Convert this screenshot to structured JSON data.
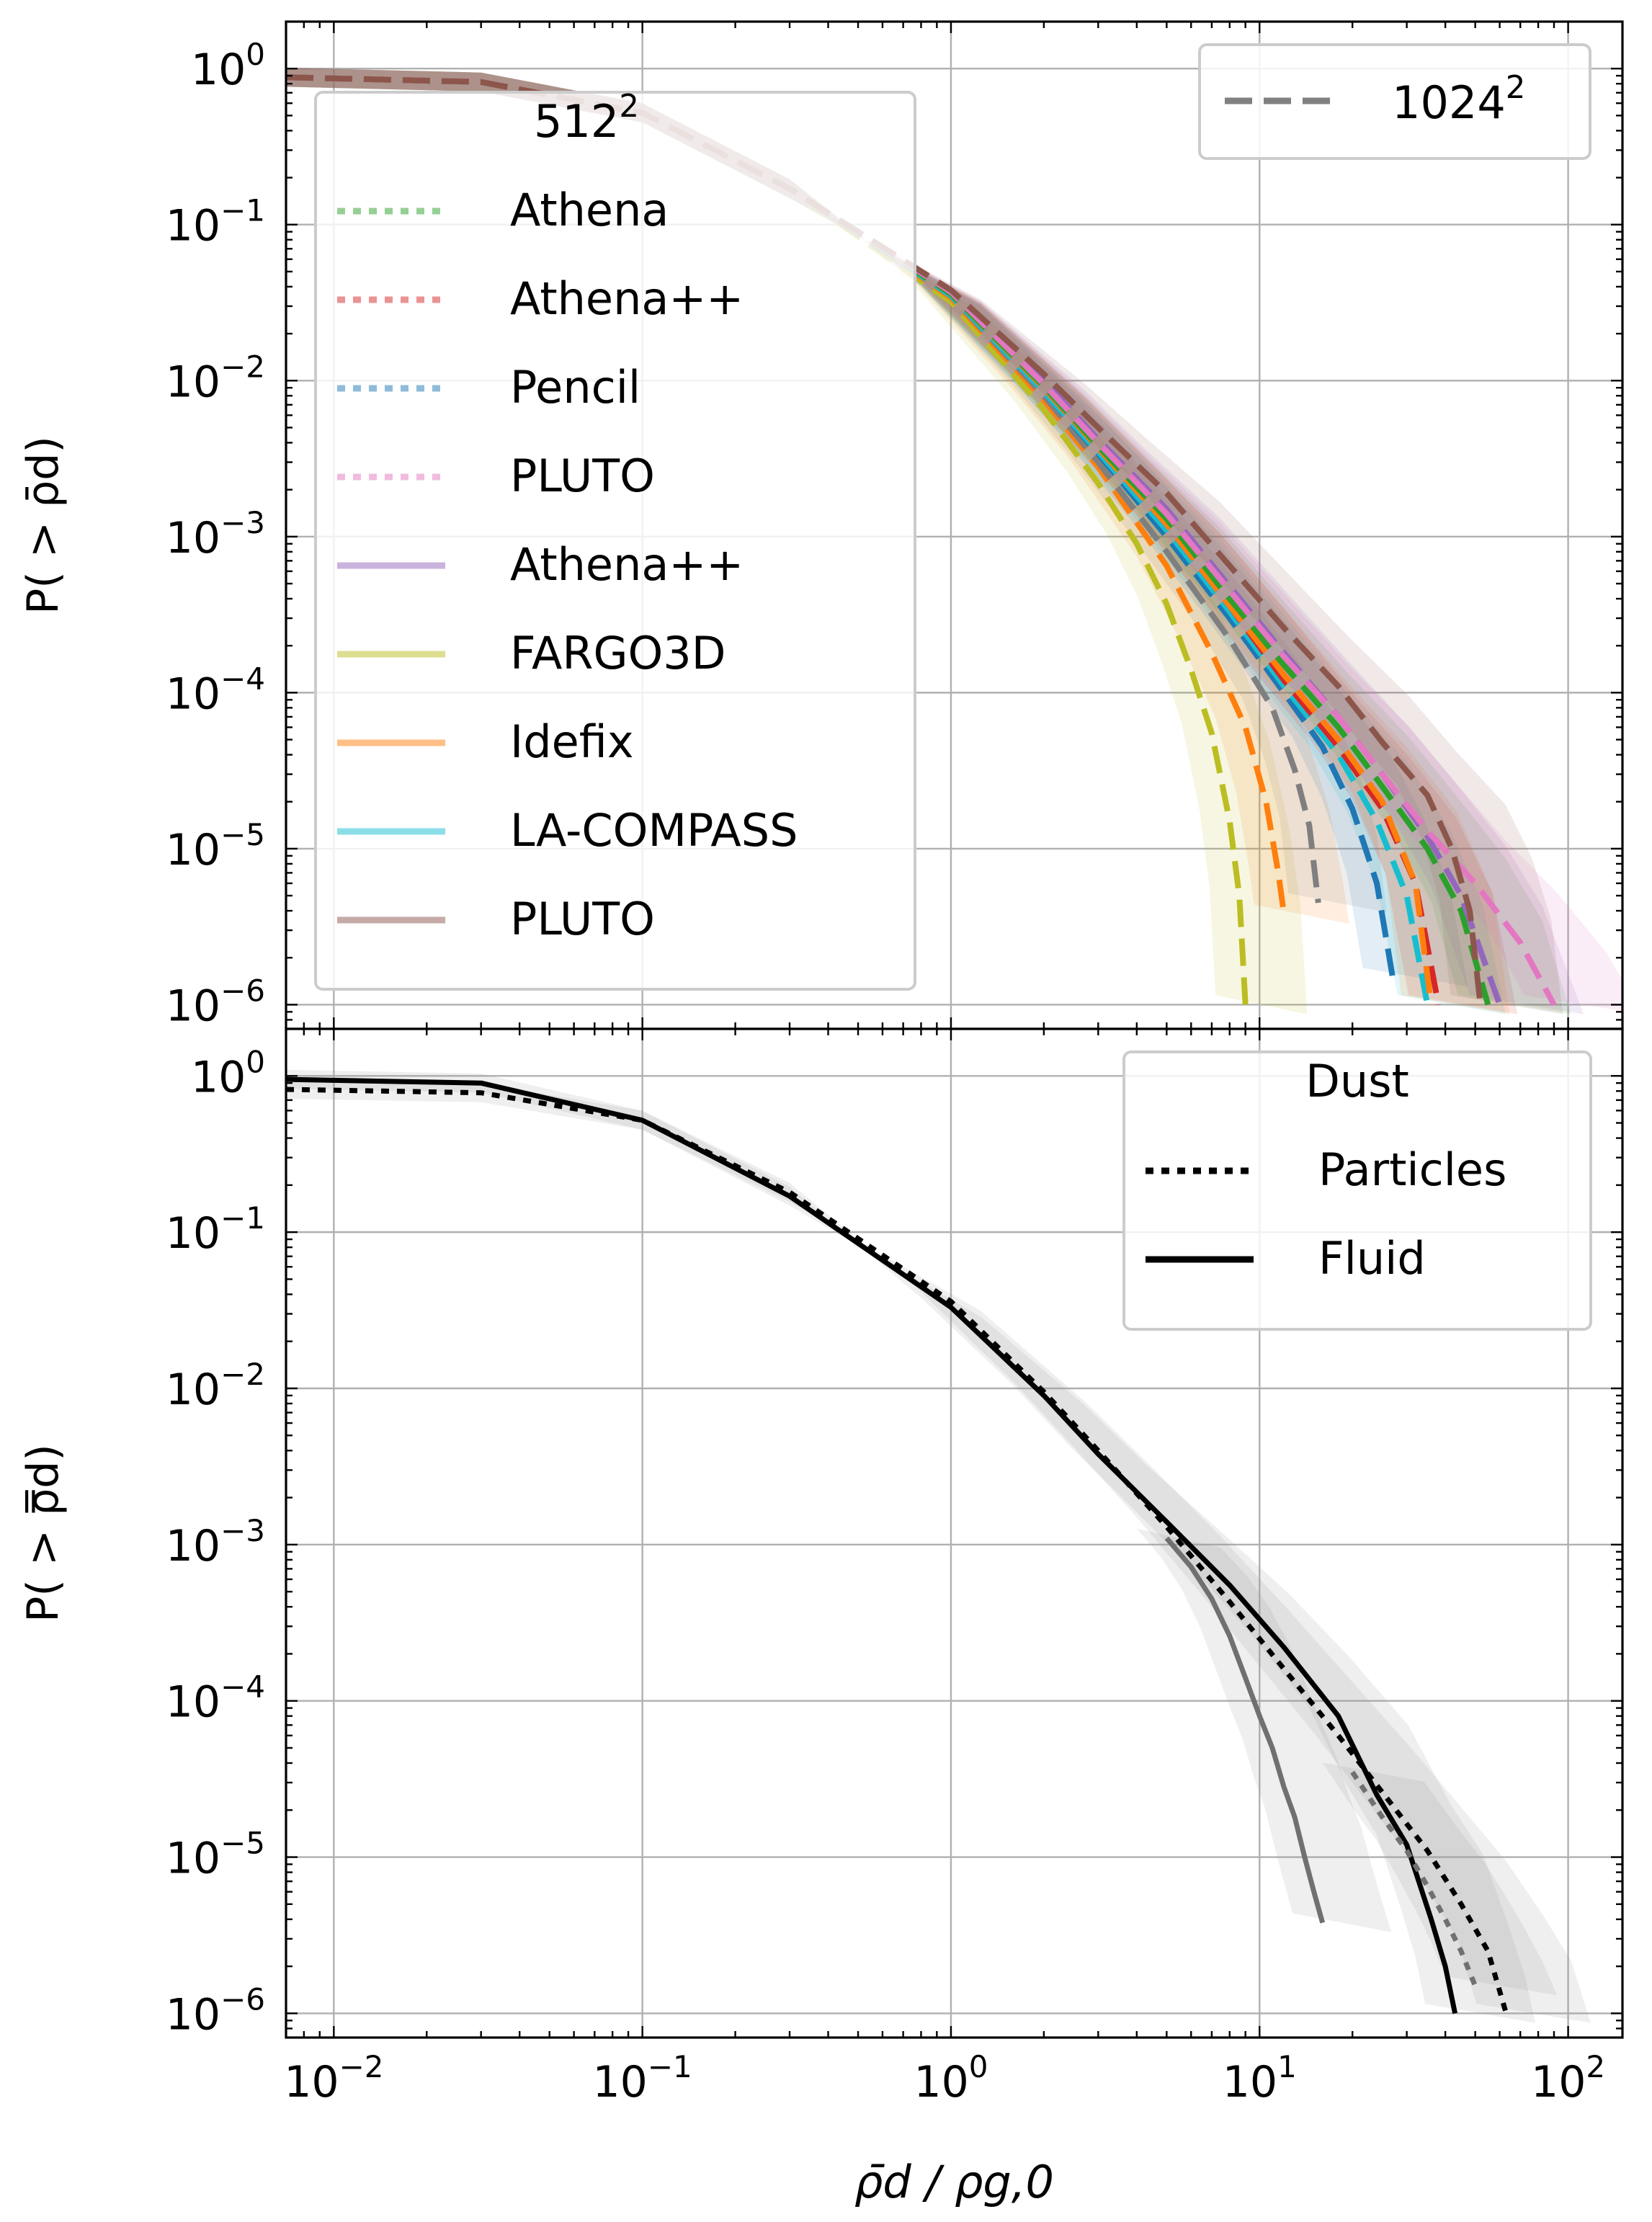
{
  "chart_data": [
    {
      "type": "line",
      "panel": "top",
      "xscale": "log",
      "yscale": "log",
      "xlim": [
        0.007,
        150
      ],
      "ylim": [
        7e-07,
        2
      ],
      "grid": true,
      "ylabel": "P( > ρ̄d)",
      "x_tick_labels": [
        "10^-2",
        "10^-1",
        "10^0",
        "10^1",
        "10^2"
      ],
      "y_tick_labels": [
        "10^0",
        "10^-1",
        "10^-2",
        "10^-3",
        "10^-4",
        "10^-5",
        "10^-6"
      ],
      "legend": {
        "placement": "upper-left",
        "title": "512^2",
        "entries": [
          {
            "label": "Athena",
            "style": "dotted",
            "color": "#2ca02c"
          },
          {
            "label": "Athena++",
            "style": "dotted",
            "color": "#d62728"
          },
          {
            "label": "Pencil",
            "style": "dotted",
            "color": "#1f77b4"
          },
          {
            "label": "PLUTO",
            "style": "dotted",
            "color": "#e377c2"
          },
          {
            "label": "Athena++",
            "style": "solid",
            "color": "#9467bd"
          },
          {
            "label": "FARGO3D",
            "style": "solid",
            "color": "#bcbd22"
          },
          {
            "label": "Idefix",
            "style": "solid",
            "color": "#ff7f0e"
          },
          {
            "label": "LA-COMPASS",
            "style": "solid",
            "color": "#17becf"
          },
          {
            "label": "PLUTO",
            "style": "solid",
            "color": "#8c564b"
          }
        ]
      },
      "legend2": {
        "placement": "upper-right",
        "entries": [
          {
            "label": "1024^2",
            "style": "dashed",
            "color": "#808080"
          }
        ]
      },
      "series": [
        {
          "color": "#bcbd22",
          "x": [
            0.007,
            0.03,
            0.1,
            0.3,
            1,
            2,
            3,
            4,
            5,
            6,
            7,
            8,
            8.6,
            9.0
          ],
          "y": [
            0.88,
            0.82,
            0.52,
            0.17,
            0.032,
            0.0065,
            0.0022,
            0.0009,
            0.00037,
            0.00014,
            5.5e-05,
            1.5e-05,
            5e-06,
            1e-06
          ]
        },
        {
          "color": "#ff7f0e",
          "x": [
            0.007,
            0.03,
            0.1,
            0.3,
            1,
            2,
            3,
            5,
            7,
            9,
            10.5,
            11.5,
            12
          ],
          "y": [
            0.88,
            0.82,
            0.52,
            0.17,
            0.034,
            0.0075,
            0.0028,
            0.00065,
            0.00018,
            6e-05,
            2e-05,
            7e-06,
            3.8e-06
          ]
        },
        {
          "color": "#7f7f7f",
          "x": [
            0.007,
            0.03,
            0.1,
            0.3,
            1,
            2,
            3,
            5,
            8,
            11,
            13,
            14.5,
            15.5
          ],
          "y": [
            0.88,
            0.82,
            0.52,
            0.17,
            0.035,
            0.008,
            0.003,
            0.0008,
            0.00022,
            8e-05,
            3.2e-05,
            1.4e-05,
            4.5e-06
          ]
        },
        {
          "color": "#1f77b4",
          "x": [
            0.007,
            0.03,
            0.1,
            0.3,
            1,
            2,
            3,
            5,
            8,
            12,
            16,
            20,
            24,
            27
          ],
          "y": [
            0.88,
            0.82,
            0.52,
            0.17,
            0.035,
            0.0085,
            0.0034,
            0.001,
            0.0003,
            0.0001,
            4.5e-05,
            1.8e-05,
            6e-06,
            1.5e-06
          ]
        },
        {
          "color": "#17becf",
          "x": [
            0.007,
            0.03,
            0.1,
            0.3,
            1,
            2,
            3,
            5,
            8,
            12,
            18,
            24,
            30,
            35
          ],
          "y": [
            0.88,
            0.82,
            0.52,
            0.17,
            0.035,
            0.0085,
            0.0035,
            0.0011,
            0.00033,
            0.00011,
            4e-05,
            1.5e-05,
            5e-06,
            1e-06
          ]
        },
        {
          "color": "#d62728",
          "x": [
            0.007,
            0.03,
            0.1,
            0.3,
            1,
            2,
            3,
            5,
            8,
            12,
            18,
            25,
            32,
            38
          ],
          "y": [
            0.88,
            0.82,
            0.52,
            0.17,
            0.036,
            0.009,
            0.0037,
            0.0012,
            0.00036,
            0.00012,
            4.5e-05,
            1.8e-05,
            6e-06,
            1e-06
          ]
        },
        {
          "color": "#ff7f0e",
          "x": [
            0.007,
            0.03,
            0.1,
            0.3,
            1,
            2,
            3,
            5,
            8,
            12,
            18,
            25,
            32,
            36
          ],
          "y": [
            0.88,
            0.82,
            0.52,
            0.17,
            0.036,
            0.009,
            0.0037,
            0.0012,
            0.00036,
            0.00013,
            5e-05,
            2e-05,
            6e-06,
            1e-06
          ]
        },
        {
          "color": "#2ca02c",
          "x": [
            0.007,
            0.03,
            0.1,
            0.3,
            1,
            2,
            3,
            5,
            8,
            12,
            18,
            25,
            35,
            45,
            55
          ],
          "y": [
            0.88,
            0.82,
            0.52,
            0.17,
            0.036,
            0.0092,
            0.0038,
            0.0013,
            0.0004,
            0.00015,
            6e-05,
            2.5e-05,
            1e-05,
            4e-06,
            1e-06
          ]
        },
        {
          "color": "#9467bd",
          "x": [
            0.007,
            0.03,
            0.1,
            0.3,
            1,
            2,
            3,
            5,
            8,
            12,
            18,
            25,
            35,
            45,
            60
          ],
          "y": [
            0.88,
            0.82,
            0.52,
            0.17,
            0.037,
            0.01,
            0.0042,
            0.0015,
            0.00048,
            0.00018,
            7e-05,
            3e-05,
            1.2e-05,
            5e-06,
            1e-06
          ]
        },
        {
          "color": "#e377c2",
          "x": [
            0.007,
            0.03,
            0.1,
            0.3,
            1,
            2,
            3,
            5,
            8,
            12,
            18,
            25,
            35,
            50,
            70,
            90
          ],
          "y": [
            0.88,
            0.82,
            0.52,
            0.17,
            0.037,
            0.0095,
            0.004,
            0.0014,
            0.00045,
            0.00017,
            7e-05,
            3e-05,
            1.3e-05,
            6e-06,
            2.5e-06,
            1e-06
          ]
        },
        {
          "color": "#8c564b",
          "x": [
            0.007,
            0.03,
            0.1,
            0.3,
            1,
            2,
            3,
            5,
            8,
            12,
            18,
            25,
            35,
            42,
            48,
            52
          ],
          "y": [
            0.88,
            0.82,
            0.52,
            0.17,
            0.038,
            0.011,
            0.005,
            0.0019,
            0.00065,
            0.00026,
            0.00011,
            4.8e-05,
            2.2e-05,
            1e-05,
            4e-06,
            1e-06
          ]
        }
      ],
      "shaded_bands": true
    },
    {
      "type": "line",
      "panel": "bottom",
      "xscale": "log",
      "yscale": "log",
      "xlim": [
        0.007,
        150
      ],
      "ylim": [
        7e-07,
        2
      ],
      "grid": true,
      "xlabel": "ρ̄d / ρg,0",
      "ylabel": "P( > ρ̿d)",
      "x_tick_labels": [
        "10^-2",
        "10^-1",
        "10^0",
        "10^1",
        "10^2"
      ],
      "y_tick_labels": [
        "10^0",
        "10^-1",
        "10^-2",
        "10^-3",
        "10^-4",
        "10^-5",
        "10^-6"
      ],
      "legend": {
        "placement": "upper-right",
        "title": "Dust",
        "entries": [
          {
            "label": "Particles",
            "style": "dotted",
            "color": "#000000"
          },
          {
            "label": "Fluid",
            "style": "solid",
            "color": "#000000"
          }
        ]
      },
      "series": [
        {
          "style": "solid",
          "color": "#000000",
          "x": [
            0.007,
            0.03,
            0.1,
            0.3,
            1,
            2,
            3,
            5,
            8,
            12,
            18,
            24,
            30,
            36,
            40,
            43
          ],
          "y": [
            0.95,
            0.9,
            0.52,
            0.17,
            0.033,
            0.009,
            0.0038,
            0.0014,
            0.00055,
            0.00022,
            8e-05,
            2.5e-05,
            1.2e-05,
            4e-06,
            2e-06,
            1e-06
          ]
        },
        {
          "style": "dotted",
          "color": "#000000",
          "x": [
            0.007,
            0.03,
            0.1,
            0.3,
            1,
            2,
            3,
            5,
            8,
            12,
            18,
            25,
            35,
            45,
            55,
            63
          ],
          "y": [
            0.82,
            0.78,
            0.52,
            0.18,
            0.036,
            0.0095,
            0.004,
            0.0013,
            0.00043,
            0.00016,
            6e-05,
            2.6e-05,
            1.1e-05,
            5e-06,
            2.5e-06,
            1e-06
          ]
        },
        {
          "style": "solid",
          "color": "#707070",
          "x": [
            5,
            6,
            7,
            8,
            9,
            10,
            11,
            12,
            13,
            14,
            15,
            16
          ],
          "y": [
            0.0011,
            0.00072,
            0.00045,
            0.00026,
            0.00014,
            8e-05,
            5e-05,
            2.8e-05,
            1.8e-05,
            1e-05,
            6e-06,
            3.8e-06
          ]
        },
        {
          "style": "dotted",
          "color": "#707070",
          "x": [
            20,
            25,
            30,
            35,
            40,
            45,
            50
          ],
          "y": [
            3.5e-05,
            1.8e-05,
            1.1e-05,
            6.5e-06,
            4e-06,
            2.5e-06,
            1.5e-06
          ]
        }
      ],
      "shaded_bands": true
    }
  ]
}
